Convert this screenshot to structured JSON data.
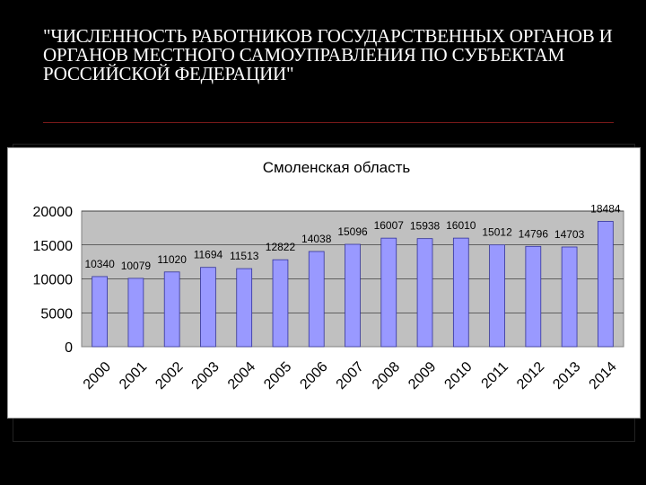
{
  "slide": {
    "title": "\"ЧИСЛЕННОСТЬ РАБОТНИКОВ ГОСУДАРСТВЕННЫХ ОРГАНОВ И ОРГАНОВ МЕСТНОГО САМОУПРАВЛЕНИЯ ПО СУБЪЕКТАМ РОССИЙСКОЙ ФЕДЕРАЦИИ\""
  },
  "colors": {
    "background": "#000000",
    "bar_fill": "#9999ff",
    "bar_stroke": "#333399",
    "plot_area": "#c0c0c0"
  },
  "chart_data": {
    "type": "bar",
    "title": "Смоленская область",
    "xlabel": "",
    "ylabel": "",
    "ylim": [
      0,
      20000
    ],
    "yticks": [
      0,
      5000,
      10000,
      15000,
      20000
    ],
    "grid": true,
    "legend": "none",
    "categories": [
      "2000",
      "2001",
      "2002",
      "2003",
      "2004",
      "2005",
      "2006",
      "2007",
      "2008",
      "2009",
      "2010",
      "2011",
      "2012",
      "2013",
      "2014"
    ],
    "values": [
      10340,
      10079,
      11020,
      11694,
      11513,
      12822,
      14038,
      15096,
      16007,
      15938,
      16010,
      15012,
      14796,
      14703,
      18484
    ]
  }
}
